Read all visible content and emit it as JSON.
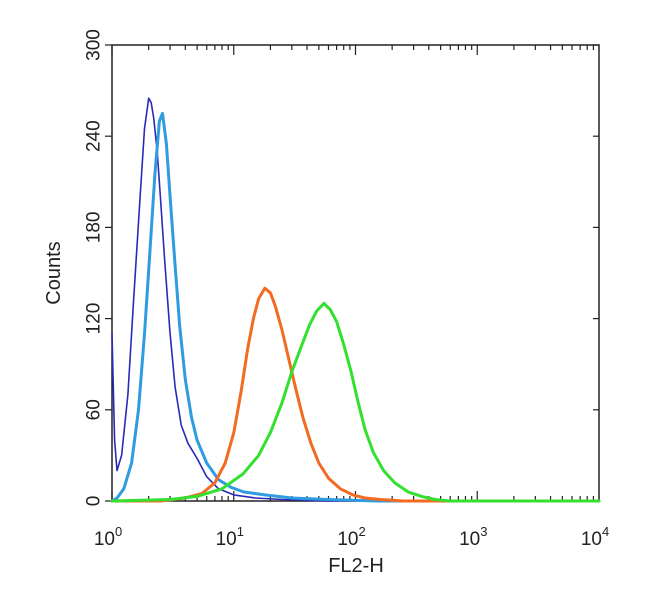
{
  "chart_data": {
    "type": "line",
    "xlabel": "FL2-H",
    "ylabel": "Counts",
    "x_scale": "log",
    "xlim": [
      1,
      10000
    ],
    "ylim": [
      0,
      300
    ],
    "x_ticks": [
      {
        "base": "10",
        "exp": "0",
        "value": 1
      },
      {
        "base": "10",
        "exp": "1",
        "value": 10
      },
      {
        "base": "10",
        "exp": "2",
        "value": 100
      },
      {
        "base": "10",
        "exp": "3",
        "value": 1000
      },
      {
        "base": "10",
        "exp": "4",
        "value": 10000
      }
    ],
    "y_ticks": [
      "0",
      "60",
      "120",
      "180",
      "240",
      "300"
    ],
    "grid": false,
    "series": [
      {
        "color": "#2a2ab8",
        "x": [
          1,
          1.05,
          1.1,
          1.2,
          1.35,
          1.5,
          1.7,
          1.85,
          2.0,
          2.1,
          2.2,
          2.35,
          2.5,
          2.7,
          3.0,
          3.3,
          3.7,
          4.2,
          5.0,
          6.0,
          7.5,
          10,
          15,
          25,
          60,
          200,
          1000,
          10000
        ],
        "y": [
          110,
          40,
          20,
          30,
          70,
          130,
          200,
          245,
          265,
          262,
          252,
          230,
          200,
          160,
          110,
          75,
          50,
          38,
          28,
          16,
          8,
          4,
          2,
          1,
          0,
          0,
          0,
          0
        ]
      },
      {
        "color": "#2f9ce0",
        "x": [
          1,
          1.1,
          1.25,
          1.45,
          1.65,
          1.85,
          2.05,
          2.25,
          2.45,
          2.6,
          2.8,
          3.0,
          3.3,
          3.6,
          4.0,
          4.5,
          5.0,
          6.0,
          7.5,
          9.5,
          12,
          18,
          30,
          60,
          150,
          500,
          10000
        ],
        "y": [
          0,
          2,
          8,
          25,
          60,
          110,
          165,
          215,
          250,
          255,
          235,
          200,
          155,
          115,
          80,
          55,
          40,
          25,
          14,
          9,
          6,
          4,
          2,
          1,
          0,
          0,
          0
        ]
      },
      {
        "color": "#f26b21",
        "x": [
          1,
          2.5,
          4,
          5.5,
          7,
          8.5,
          10,
          11.5,
          13,
          14.5,
          16,
          18,
          20,
          22,
          25,
          28,
          32,
          37,
          43,
          50,
          60,
          75,
          95,
          120,
          160,
          250,
          500,
          10000
        ],
        "y": [
          0,
          0,
          2,
          5,
          12,
          25,
          45,
          72,
          100,
          120,
          133,
          140,
          137,
          128,
          112,
          95,
          75,
          55,
          38,
          25,
          15,
          8,
          4,
          2,
          1,
          0,
          0,
          0
        ]
      },
      {
        "color": "#33e02f",
        "x": [
          1,
          3,
          5,
          8,
          12,
          16,
          20,
          25,
          30,
          36,
          42,
          48,
          55,
          62,
          70,
          80,
          92,
          105,
          120,
          140,
          170,
          210,
          270,
          350,
          450,
          600,
          1000,
          10000
        ],
        "y": [
          0,
          1,
          3,
          8,
          18,
          30,
          45,
          65,
          85,
          102,
          116,
          125,
          130,
          126,
          118,
          103,
          85,
          65,
          47,
          32,
          20,
          12,
          6,
          3,
          1,
          0,
          0,
          0
        ]
      }
    ]
  }
}
